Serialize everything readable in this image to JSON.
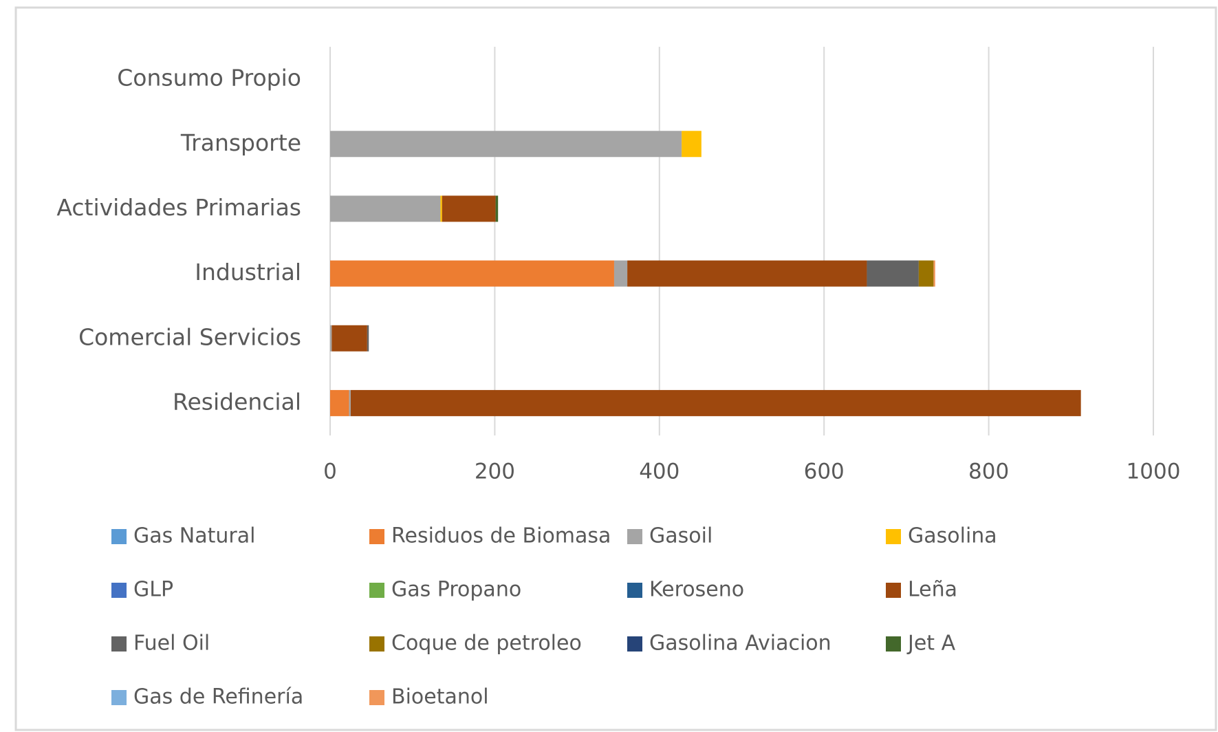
{
  "chart_data": {
    "type": "stacked_bar_horizontal",
    "categories": [
      "Consumo Propio",
      "Transporte",
      "Actividades Primarias",
      "Industrial",
      "Comercial Servicios",
      "Residencial"
    ],
    "series": [
      {
        "name": "Gas Natural",
        "color": "#5b9bd5",
        "values": [
          0,
          0,
          0,
          0,
          0,
          0
        ]
      },
      {
        "name": "Residuos de Biomasa",
        "color": "#ed7d31",
        "values": [
          0,
          0,
          0,
          345,
          0,
          23
        ]
      },
      {
        "name": "Gasoil",
        "color": "#a5a5a5",
        "values": [
          0,
          427,
          134,
          16,
          2,
          2
        ]
      },
      {
        "name": "Gasolina",
        "color": "#ffc000",
        "values": [
          0,
          24,
          2,
          0,
          0,
          0
        ]
      },
      {
        "name": "GLP",
        "color": "#4472c4",
        "values": [
          0,
          0,
          0,
          0,
          0,
          0
        ]
      },
      {
        "name": "Gas Propano",
        "color": "#70ad47",
        "values": [
          0,
          0,
          0,
          0,
          0,
          0
        ]
      },
      {
        "name": "Keroseno",
        "color": "#255e91",
        "values": [
          0,
          0,
          0,
          0,
          0,
          0
        ]
      },
      {
        "name": "Leña",
        "color": "#9e480e",
        "values": [
          0,
          0,
          65,
          291,
          43,
          887
        ]
      },
      {
        "name": "Fuel Oil",
        "color": "#636363",
        "values": [
          0,
          0,
          0,
          63,
          2,
          0
        ]
      },
      {
        "name": "Coque de petroleo",
        "color": "#997300",
        "values": [
          0,
          0,
          0,
          18,
          0,
          0
        ]
      },
      {
        "name": "Gasolina Aviacion",
        "color": "#264478",
        "values": [
          0,
          0,
          0,
          0,
          0,
          0
        ]
      },
      {
        "name": "Jet A",
        "color": "#43682b",
        "values": [
          0,
          0,
          3,
          0,
          0,
          0
        ]
      },
      {
        "name": "Gas de Refinería",
        "color": "#7cafdd",
        "values": [
          0,
          0,
          0,
          0,
          0,
          0
        ]
      },
      {
        "name": "Bioetanol",
        "color": "#f1975a",
        "values": [
          0,
          0,
          0,
          2,
          0,
          0
        ]
      }
    ],
    "xlim": [
      0,
      1000
    ],
    "xticks": [
      0,
      200,
      400,
      600,
      800,
      1000
    ],
    "grid": true,
    "legend": "bottom"
  }
}
